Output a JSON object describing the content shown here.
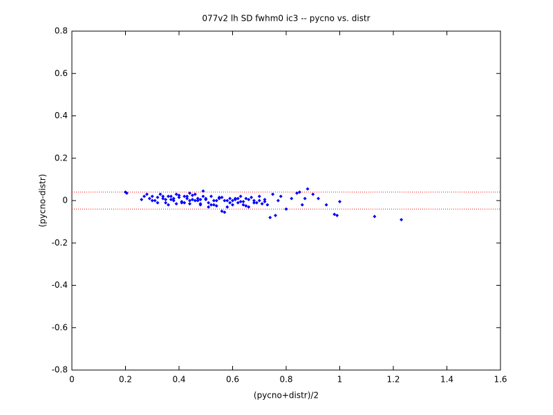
{
  "chart_data": {
    "type": "scatter",
    "title": "077v2 lh SD fwhm0 ic3 -- pycno vs. distr",
    "xlabel": "(pycno+distr)/2",
    "ylabel": "(pycno-distr)",
    "xlim": [
      0,
      1.6
    ],
    "ylim": [
      -0.8,
      0.8
    ],
    "xticks": [
      0,
      0.2,
      0.4,
      0.6,
      0.8,
      1,
      1.2,
      1.4,
      1.6
    ],
    "yticks": [
      -0.8,
      -0.6,
      -0.4,
      -0.2,
      0,
      0.2,
      0.4,
      0.6,
      0.8
    ],
    "hlines": [
      0.04,
      -0.04
    ],
    "hline_color": "#ff0000",
    "grid": false,
    "series": [
      {
        "color": "#0000ff",
        "x": [
          0.2,
          0.205,
          0.26,
          0.27,
          0.28,
          0.29,
          0.3,
          0.31,
          0.32,
          0.33,
          0.34,
          0.35,
          0.36,
          0.37,
          0.38,
          0.39,
          0.4,
          0.41,
          0.42,
          0.43,
          0.44,
          0.45,
          0.46,
          0.47,
          0.48,
          0.49,
          0.5,
          0.51,
          0.52,
          0.53,
          0.54,
          0.55,
          0.56,
          0.57,
          0.58,
          0.59,
          0.6,
          0.61,
          0.62,
          0.63,
          0.64,
          0.65,
          0.66,
          0.67,
          0.68,
          0.69,
          0.7,
          0.71,
          0.72,
          0.73,
          0.74,
          0.75,
          0.76,
          0.77,
          0.78,
          0.8,
          0.82,
          0.84,
          0.85,
          0.86,
          0.87,
          0.88,
          0.9,
          0.92,
          0.95,
          0.98,
          0.99,
          1.0,
          1.13,
          1.23,
          0.3,
          0.32,
          0.34,
          0.36,
          0.38,
          0.4,
          0.42,
          0.44,
          0.46,
          0.48,
          0.5,
          0.52,
          0.54,
          0.56,
          0.58,
          0.6,
          0.62,
          0.64,
          0.66,
          0.68,
          0.7,
          0.72,
          0.35,
          0.39,
          0.43,
          0.47,
          0.51,
          0.55,
          0.59,
          0.63,
          0.37,
          0.41,
          0.45,
          0.49,
          0.53,
          0.57,
          0.61,
          0.65,
          0.44,
          0.48
        ],
        "values": [
          0.04,
          0.035,
          0.005,
          0.02,
          0.03,
          0.01,
          0.02,
          0.0,
          0.015,
          0.03,
          0.01,
          -0.01,
          0.02,
          0.005,
          0.0,
          0.03,
          0.015,
          -0.005,
          0.02,
          0.01,
          -0.015,
          0.025,
          0.0,
          0.01,
          -0.02,
          0.045,
          0.005,
          -0.01,
          0.02,
          0.0,
          -0.025,
          0.015,
          -0.05,
          -0.055,
          0.0,
          0.01,
          -0.02,
          0.005,
          -0.01,
          0.02,
          -0.005,
          0.01,
          -0.03,
          0.015,
          0.0,
          -0.01,
          0.02,
          -0.015,
          0.005,
          -0.02,
          -0.08,
          0.03,
          -0.07,
          0.0,
          0.02,
          -0.04,
          0.01,
          0.035,
          0.04,
          -0.02,
          0.01,
          0.055,
          0.03,
          0.01,
          -0.02,
          -0.065,
          -0.07,
          -0.005,
          -0.075,
          -0.09,
          0.0,
          -0.01,
          0.02,
          -0.02,
          0.01,
          0.025,
          -0.01,
          0.0,
          0.03,
          -0.015,
          0.01,
          -0.02,
          0.0,
          0.015,
          -0.03,
          0.0,
          0.01,
          -0.02,
          0.005,
          -0.01,
          0.0,
          -0.005,
          0.005,
          -0.015,
          0.02,
          0.0,
          -0.03,
          0.01,
          -0.01,
          -0.005,
          0.02,
          -0.01,
          0.005,
          0.02,
          -0.02,
          0.0,
          0.01,
          -0.025,
          0.035,
          0.005
        ]
      }
    ]
  }
}
